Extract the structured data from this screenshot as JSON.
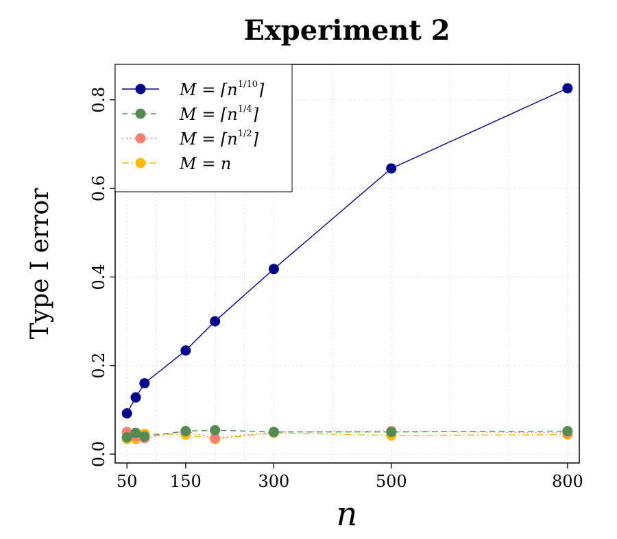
{
  "chart_data": {
    "type": "line",
    "title": "Experiment 2",
    "xlabel": "n",
    "ylabel": "Type I error",
    "x": [
      50,
      65,
      80,
      150,
      200,
      300,
      500,
      800
    ],
    "xticks": [
      50,
      150,
      300,
      500,
      800
    ],
    "yticks": [
      "0.0",
      "0.2",
      "0.4",
      "0.6",
      "0.8"
    ],
    "xlim": [
      30,
      820
    ],
    "ylim": [
      -0.02,
      0.88
    ],
    "grid": true,
    "legend_position": "top-left",
    "series": [
      {
        "name": "M = ⌈n^(1/10)⌉",
        "legend_base": "M = ⌈n",
        "legend_exp": "1/10",
        "legend_close": "⌉",
        "color": "#00008B",
        "dash": "",
        "values": [
          0.092,
          0.128,
          0.16,
          0.234,
          0.3,
          0.418,
          0.645,
          0.826
        ]
      },
      {
        "name": "M = ⌈n^(1/4)⌉",
        "legend_base": "M = ⌈n",
        "legend_exp": "1/4",
        "legend_close": "⌉",
        "color": "#548B54",
        "dash": "8,6",
        "values": [
          0.038,
          0.048,
          0.04,
          0.052,
          0.054,
          0.05,
          0.05,
          0.052
        ]
      },
      {
        "name": "M = ⌈n^(1/2)⌉",
        "legend_base": "M = ⌈n",
        "legend_exp": "1/2",
        "legend_close": "⌉",
        "color": "#FA8072",
        "dash": "2,4",
        "values": [
          0.05,
          0.04,
          0.036,
          0.052,
          0.036,
          0.05,
          0.052,
          0.048
        ]
      },
      {
        "name": "M = n",
        "legend_base": "M = n",
        "legend_exp": "",
        "legend_close": "",
        "color": "#FFB90F",
        "dash": "10,4,2,4",
        "values": [
          0.034,
          0.034,
          0.046,
          0.044,
          0.034,
          0.048,
          0.042,
          0.044
        ]
      }
    ]
  }
}
